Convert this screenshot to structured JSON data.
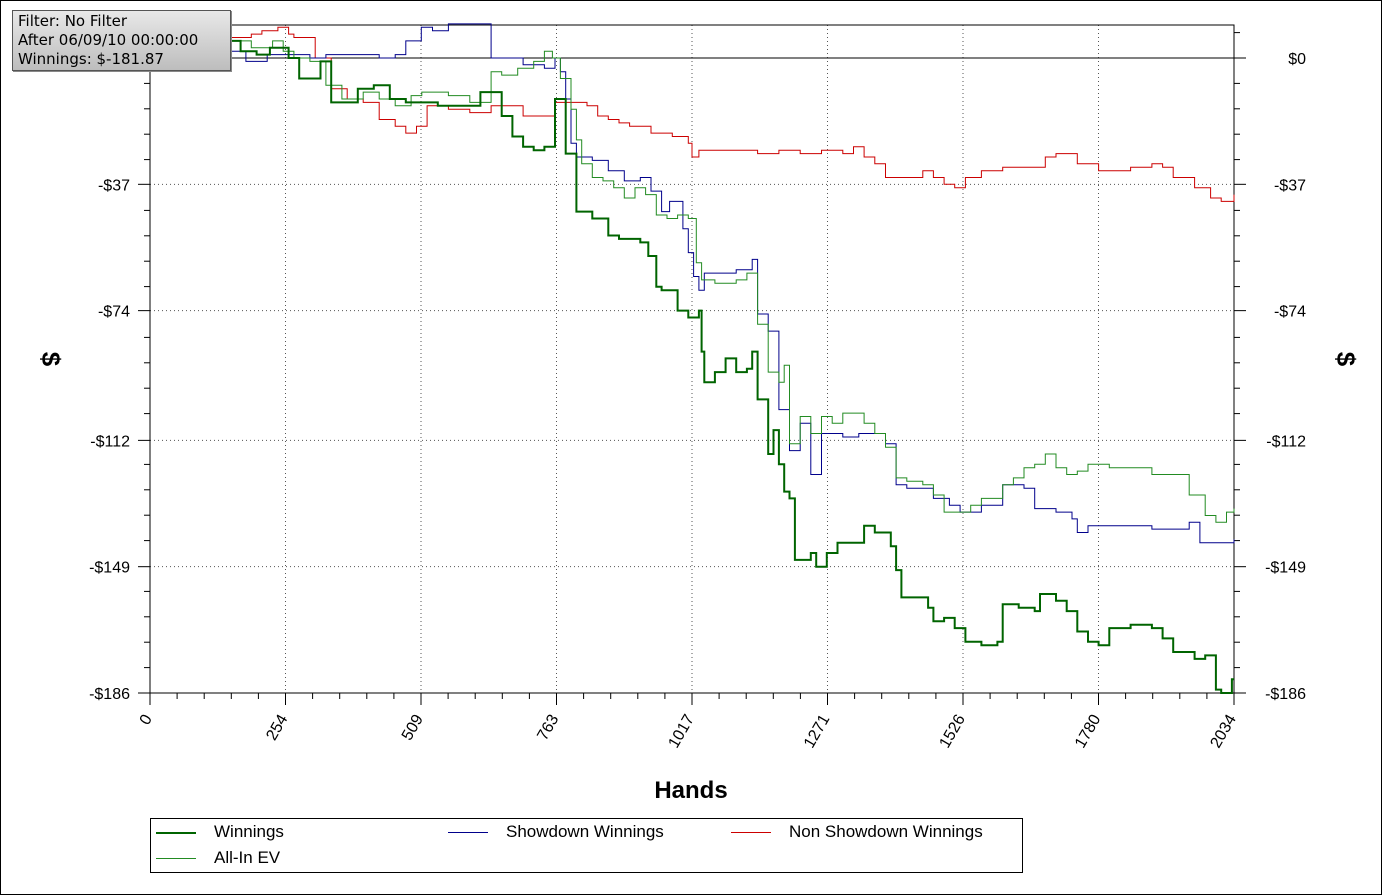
{
  "filter_box": {
    "line1": "Filter: No Filter",
    "line2": "After 06/09/10 00:00:00",
    "line3": "Winnings: $-181.87"
  },
  "chart_data": {
    "type": "line",
    "xlabel": "Hands",
    "ylabel": "$",
    "xlim": [
      0,
      2034
    ],
    "ylim": [
      -186,
      10
    ],
    "x_ticks": [
      "0",
      "254",
      "509",
      "763",
      "1017",
      "1271",
      "1526",
      "1780",
      "2034"
    ],
    "y_ticks": [
      {
        "value": 0,
        "label": "$0"
      },
      {
        "value": -37,
        "label": "-$37"
      },
      {
        "value": -74,
        "label": "-$74"
      },
      {
        "value": -112,
        "label": "-$112"
      },
      {
        "value": -149,
        "label": "-$149"
      },
      {
        "value": -186,
        "label": "-$186"
      }
    ],
    "grid": "dotted",
    "legend_position": "bottom",
    "series": [
      {
        "name": "Winnings",
        "color": "#006400",
        "points": [
          [
            0,
            4
          ],
          [
            60,
            3
          ],
          [
            100,
            4
          ],
          [
            150,
            5
          ],
          [
            170,
            2
          ],
          [
            200,
            1
          ],
          [
            225,
            3
          ],
          [
            240,
            3
          ],
          [
            260,
            0
          ],
          [
            280,
            -6
          ],
          [
            310,
            -6
          ],
          [
            320,
            -1
          ],
          [
            340,
            -13
          ],
          [
            370,
            -13
          ],
          [
            390,
            -9
          ],
          [
            420,
            -8
          ],
          [
            450,
            -12
          ],
          [
            480,
            -13
          ],
          [
            540,
            -14
          ],
          [
            580,
            -14
          ],
          [
            620,
            -10
          ],
          [
            660,
            -17
          ],
          [
            680,
            -23
          ],
          [
            700,
            -26
          ],
          [
            720,
            -27
          ],
          [
            740,
            -26
          ],
          [
            760,
            -12
          ],
          [
            780,
            -28
          ],
          [
            800,
            -45
          ],
          [
            830,
            -47
          ],
          [
            860,
            -52
          ],
          [
            880,
            -53
          ],
          [
            920,
            -54
          ],
          [
            935,
            -58
          ],
          [
            950,
            -67
          ],
          [
            960,
            -68
          ],
          [
            980,
            -68
          ],
          [
            990,
            -74
          ],
          [
            1010,
            -76
          ],
          [
            1030,
            -74
          ],
          [
            1035,
            -86
          ],
          [
            1040,
            -95
          ],
          [
            1060,
            -92
          ],
          [
            1080,
            -88
          ],
          [
            1100,
            -92
          ],
          [
            1120,
            -91
          ],
          [
            1130,
            -86
          ],
          [
            1140,
            -100
          ],
          [
            1160,
            -116
          ],
          [
            1170,
            -109
          ],
          [
            1180,
            -119
          ],
          [
            1190,
            -127
          ],
          [
            1200,
            -129
          ],
          [
            1210,
            -147
          ],
          [
            1240,
            -145
          ],
          [
            1250,
            -149
          ],
          [
            1270,
            -145
          ],
          [
            1290,
            -142
          ],
          [
            1320,
            -142
          ],
          [
            1340,
            -137
          ],
          [
            1360,
            -139
          ],
          [
            1390,
            -143
          ],
          [
            1400,
            -150
          ],
          [
            1410,
            -158
          ],
          [
            1440,
            -158
          ],
          [
            1460,
            -161
          ],
          [
            1470,
            -165
          ],
          [
            1490,
            -164
          ],
          [
            1510,
            -167
          ],
          [
            1530,
            -171
          ],
          [
            1560,
            -172
          ],
          [
            1590,
            -171
          ],
          [
            1600,
            -160
          ],
          [
            1630,
            -161
          ],
          [
            1660,
            -162
          ],
          [
            1670,
            -157
          ],
          [
            1700,
            -159
          ],
          [
            1720,
            -162
          ],
          [
            1740,
            -168
          ],
          [
            1760,
            -171
          ],
          [
            1780,
            -172
          ],
          [
            1800,
            -167
          ],
          [
            1840,
            -166
          ],
          [
            1880,
            -167
          ],
          [
            1900,
            -170
          ],
          [
            1920,
            -174
          ],
          [
            1960,
            -176
          ],
          [
            1980,
            -175
          ],
          [
            2000,
            -185
          ],
          [
            2010,
            -186
          ],
          [
            2030,
            -182
          ],
          [
            2034,
            -182
          ]
        ]
      },
      {
        "name": "Showdown Winnings",
        "color": "#00008b",
        "points": [
          [
            0,
            3
          ],
          [
            70,
            2
          ],
          [
            130,
            2
          ],
          [
            180,
            -1
          ],
          [
            200,
            -1
          ],
          [
            220,
            1
          ],
          [
            260,
            1
          ],
          [
            300,
            0
          ],
          [
            330,
            1
          ],
          [
            430,
            0
          ],
          [
            460,
            1
          ],
          [
            480,
            5
          ],
          [
            509,
            9
          ],
          [
            530,
            8
          ],
          [
            560,
            10
          ],
          [
            620,
            10
          ],
          [
            640,
            0
          ],
          [
            700,
            -2
          ],
          [
            740,
            -3
          ],
          [
            760,
            0
          ],
          [
            770,
            -4
          ],
          [
            780,
            -12
          ],
          [
            790,
            -25
          ],
          [
            800,
            -29
          ],
          [
            830,
            -30
          ],
          [
            860,
            -33
          ],
          [
            890,
            -36
          ],
          [
            920,
            -35
          ],
          [
            940,
            -39
          ],
          [
            960,
            -45
          ],
          [
            975,
            -42
          ],
          [
            1000,
            -50
          ],
          [
            1010,
            -57
          ],
          [
            1020,
            -64
          ],
          [
            1030,
            -68
          ],
          [
            1040,
            -63
          ],
          [
            1070,
            -63
          ],
          [
            1100,
            -62
          ],
          [
            1130,
            -59
          ],
          [
            1140,
            -75
          ],
          [
            1160,
            -80
          ],
          [
            1180,
            -103
          ],
          [
            1200,
            -115
          ],
          [
            1220,
            -107
          ],
          [
            1240,
            -122
          ],
          [
            1260,
            -110
          ],
          [
            1300,
            -111
          ],
          [
            1330,
            -110
          ],
          [
            1360,
            -110
          ],
          [
            1380,
            -113
          ],
          [
            1400,
            -125
          ],
          [
            1420,
            -126
          ],
          [
            1450,
            -126
          ],
          [
            1470,
            -129
          ],
          [
            1500,
            -131
          ],
          [
            1520,
            -133
          ],
          [
            1560,
            -131
          ],
          [
            1600,
            -125
          ],
          [
            1640,
            -126
          ],
          [
            1660,
            -132
          ],
          [
            1700,
            -133
          ],
          [
            1730,
            -135
          ],
          [
            1740,
            -139
          ],
          [
            1760,
            -137
          ],
          [
            1800,
            -137
          ],
          [
            1860,
            -137
          ],
          [
            1880,
            -138
          ],
          [
            1920,
            -138
          ],
          [
            1950,
            -136
          ],
          [
            1970,
            -142
          ],
          [
            2010,
            -142
          ],
          [
            2034,
            -141
          ]
        ]
      },
      {
        "name": "Non Showdown Winnings",
        "color": "#cc0000",
        "points": [
          [
            0,
            5
          ],
          [
            60,
            4
          ],
          [
            100,
            5
          ],
          [
            150,
            6
          ],
          [
            190,
            7
          ],
          [
            210,
            8
          ],
          [
            240,
            9
          ],
          [
            260,
            7
          ],
          [
            270,
            6
          ],
          [
            310,
            0
          ],
          [
            340,
            -9
          ],
          [
            370,
            -12
          ],
          [
            400,
            -13
          ],
          [
            430,
            -18
          ],
          [
            460,
            -20
          ],
          [
            480,
            -22
          ],
          [
            500,
            -20
          ],
          [
            520,
            -14
          ],
          [
            560,
            -15
          ],
          [
            600,
            -16
          ],
          [
            640,
            -14
          ],
          [
            700,
            -17
          ],
          [
            760,
            -13
          ],
          [
            790,
            -13
          ],
          [
            820,
            -14
          ],
          [
            840,
            -17
          ],
          [
            860,
            -18
          ],
          [
            880,
            -19
          ],
          [
            900,
            -20
          ],
          [
            940,
            -22
          ],
          [
            980,
            -23
          ],
          [
            1010,
            -25
          ],
          [
            1017,
            -29
          ],
          [
            1030,
            -27
          ],
          [
            1060,
            -27
          ],
          [
            1100,
            -27
          ],
          [
            1140,
            -28
          ],
          [
            1180,
            -27
          ],
          [
            1220,
            -28
          ],
          [
            1260,
            -27
          ],
          [
            1300,
            -28
          ],
          [
            1320,
            -26
          ],
          [
            1340,
            -29
          ],
          [
            1360,
            -31
          ],
          [
            1380,
            -35
          ],
          [
            1420,
            -35
          ],
          [
            1450,
            -33
          ],
          [
            1470,
            -35
          ],
          [
            1490,
            -37
          ],
          [
            1510,
            -38
          ],
          [
            1530,
            -35
          ],
          [
            1560,
            -33
          ],
          [
            1600,
            -32
          ],
          [
            1640,
            -32
          ],
          [
            1680,
            -29
          ],
          [
            1700,
            -28
          ],
          [
            1740,
            -31
          ],
          [
            1780,
            -33
          ],
          [
            1800,
            -33
          ],
          [
            1840,
            -32
          ],
          [
            1880,
            -31
          ],
          [
            1900,
            -32
          ],
          [
            1920,
            -35
          ],
          [
            1960,
            -38
          ],
          [
            1990,
            -41
          ],
          [
            2010,
            -42
          ],
          [
            2034,
            -40
          ]
        ]
      },
      {
        "name": "All-In EV",
        "color": "#228b22",
        "points": [
          [
            0,
            4
          ],
          [
            60,
            4
          ],
          [
            110,
            5
          ],
          [
            150,
            5
          ],
          [
            190,
            3
          ],
          [
            210,
            3
          ],
          [
            230,
            5
          ],
          [
            250,
            2
          ],
          [
            270,
            0
          ],
          [
            300,
            -1
          ],
          [
            330,
            -8
          ],
          [
            360,
            -12
          ],
          [
            400,
            -10
          ],
          [
            430,
            -12
          ],
          [
            460,
            -14
          ],
          [
            490,
            -11
          ],
          [
            510,
            -10
          ],
          [
            560,
            -11
          ],
          [
            600,
            -13
          ],
          [
            640,
            -4
          ],
          [
            660,
            -5
          ],
          [
            690,
            -3
          ],
          [
            720,
            -1
          ],
          [
            740,
            2
          ],
          [
            755,
            0
          ],
          [
            770,
            -6
          ],
          [
            790,
            -15
          ],
          [
            800,
            -24
          ],
          [
            810,
            -31
          ],
          [
            830,
            -35
          ],
          [
            850,
            -36
          ],
          [
            870,
            -38
          ],
          [
            890,
            -41
          ],
          [
            910,
            -38
          ],
          [
            930,
            -40
          ],
          [
            950,
            -46
          ],
          [
            970,
            -47
          ],
          [
            990,
            -46
          ],
          [
            1010,
            -47
          ],
          [
            1025,
            -60
          ],
          [
            1035,
            -65
          ],
          [
            1060,
            -66
          ],
          [
            1080,
            -66
          ],
          [
            1100,
            -65
          ],
          [
            1120,
            -63
          ],
          [
            1140,
            -78
          ],
          [
            1160,
            -92
          ],
          [
            1180,
            -95
          ],
          [
            1190,
            -90
          ],
          [
            1200,
            -113
          ],
          [
            1220,
            -105
          ],
          [
            1240,
            -110
          ],
          [
            1260,
            -105
          ],
          [
            1280,
            -107
          ],
          [
            1300,
            -104
          ],
          [
            1320,
            -104
          ],
          [
            1340,
            -107
          ],
          [
            1360,
            -110
          ],
          [
            1380,
            -114
          ],
          [
            1400,
            -123
          ],
          [
            1420,
            -124
          ],
          [
            1450,
            -125
          ],
          [
            1470,
            -128
          ],
          [
            1490,
            -133
          ],
          [
            1520,
            -133
          ],
          [
            1540,
            -131
          ],
          [
            1560,
            -129
          ],
          [
            1600,
            -125
          ],
          [
            1620,
            -123
          ],
          [
            1640,
            -120
          ],
          [
            1660,
            -119
          ],
          [
            1680,
            -116
          ],
          [
            1700,
            -120
          ],
          [
            1720,
            -122
          ],
          [
            1740,
            -121
          ],
          [
            1760,
            -119
          ],
          [
            1800,
            -120
          ],
          [
            1840,
            -120
          ],
          [
            1880,
            -122
          ],
          [
            1920,
            -122
          ],
          [
            1950,
            -128
          ],
          [
            1980,
            -134
          ],
          [
            2000,
            -136
          ],
          [
            2020,
            -133
          ],
          [
            2034,
            -132
          ]
        ]
      }
    ]
  }
}
